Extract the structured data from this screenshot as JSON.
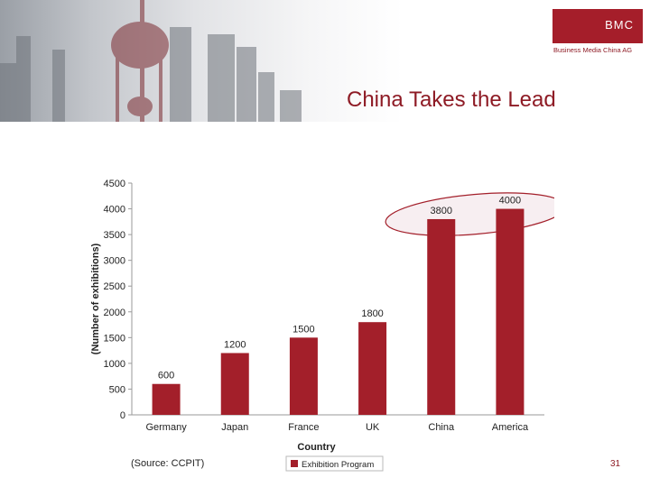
{
  "slide": {
    "title": "China Takes the Lead",
    "source": "(Source: CCPIT)",
    "page_number": "31"
  },
  "logo": {
    "mark": "BMC",
    "subtitle": "Business Media China AG"
  },
  "colors": {
    "brand": "#a51e2a",
    "bar": "#a31f2a",
    "highlight": "#f7eef1",
    "title": "#8e1b25"
  },
  "chart_data": {
    "type": "bar",
    "categories": [
      "Germany",
      "Japan",
      "France",
      "UK",
      "China",
      "America"
    ],
    "series": [
      {
        "name": "Exhibition Program",
        "values": [
          600,
          1200,
          1500,
          1800,
          3800,
          4000
        ]
      }
    ],
    "data_labels": [
      "600",
      "1200",
      "1500",
      "1800",
      "3800",
      "4000"
    ],
    "xlabel": "Country",
    "ylabel": "(Number of exhibitions)",
    "ylim": [
      0,
      4500
    ],
    "yticks": [
      0,
      500,
      1000,
      1500,
      2000,
      2500,
      3000,
      3500,
      4000,
      4500
    ],
    "grid": false,
    "legend": "bottom",
    "highlighted_categories": [
      "China",
      "America"
    ]
  }
}
